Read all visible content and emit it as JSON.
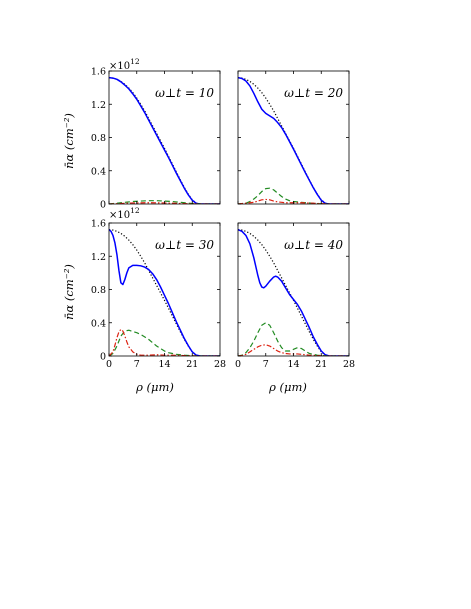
{
  "figure": {
    "y_axis_label": "n̄α (cm⁻²)",
    "x_axis_label": "ρ (μm)",
    "multiplier_label": "×10",
    "multiplier_exponent": "12"
  },
  "chart_data": [
    {
      "type": "line",
      "annotation": "ω⊥t = 10",
      "xlim": [
        0,
        28
      ],
      "ylim": [
        0,
        1.6
      ],
      "xticks": [
        0,
        7,
        14,
        21,
        28
      ],
      "yticks": [
        0,
        0.4,
        0.8,
        1.2,
        1.6
      ],
      "ytick_labels": [
        "0",
        "0.4",
        "0.8",
        "1.2",
        "1.6"
      ],
      "series": [
        {
          "color": "#000000",
          "dash": "1.2 2",
          "x": [
            0,
            1,
            2,
            3,
            4,
            5,
            6,
            7,
            8,
            9,
            10,
            11,
            12,
            13,
            14,
            15,
            16,
            17,
            18,
            19,
            20,
            21,
            22,
            23,
            24,
            25,
            26,
            27,
            28
          ],
          "y": [
            1.52,
            1.515,
            1.5,
            1.475,
            1.44,
            1.395,
            1.34,
            1.275,
            1.2,
            1.12,
            1.03,
            0.94,
            0.85,
            0.76,
            0.67,
            0.575,
            0.48,
            0.385,
            0.29,
            0.2,
            0.12,
            0.05,
            0.01,
            0,
            0,
            0,
            0,
            0,
            0
          ]
        },
        {
          "color": "#0000ff",
          "dash": "",
          "x": [
            0,
            1,
            2,
            3,
            4,
            5,
            6,
            7,
            8,
            9,
            10,
            11,
            12,
            13,
            14,
            15,
            16,
            17,
            18,
            19,
            20,
            21,
            22,
            23,
            24,
            25,
            26,
            27,
            28
          ],
          "y": [
            1.52,
            1.515,
            1.5,
            1.47,
            1.43,
            1.385,
            1.325,
            1.26,
            1.18,
            1.1,
            1.01,
            0.92,
            0.83,
            0.74,
            0.65,
            0.56,
            0.465,
            0.37,
            0.28,
            0.19,
            0.11,
            0.045,
            0.008,
            0,
            0,
            0,
            0,
            0,
            0
          ]
        },
        {
          "color": "#228b22",
          "dash": "5 3",
          "x": [
            0,
            2,
            4,
            6,
            8,
            10,
            12,
            14,
            16,
            18,
            20,
            22,
            24,
            28
          ],
          "y": [
            0,
            0.01,
            0.02,
            0.03,
            0.035,
            0.04,
            0.04,
            0.035,
            0.03,
            0.02,
            0.01,
            0.003,
            0,
            0
          ]
        },
        {
          "color": "#dd2211",
          "dash": "5 2 1.5 2",
          "x": [
            0,
            2,
            4,
            6,
            8,
            10,
            12,
            14,
            16,
            18,
            20,
            22,
            24,
            28
          ],
          "y": [
            0,
            0.004,
            0.008,
            0.012,
            0.014,
            0.015,
            0.014,
            0.012,
            0.009,
            0.006,
            0.003,
            0.001,
            0,
            0
          ]
        }
      ]
    },
    {
      "type": "line",
      "annotation": "ω⊥t = 20",
      "xlim": [
        0,
        28
      ],
      "ylim": [
        0,
        1.6
      ],
      "xticks": [
        0,
        7,
        14,
        21,
        28
      ],
      "yticks": [
        0,
        0.4,
        0.8,
        1.2,
        1.6
      ],
      "ytick_labels": [
        "",
        "",
        "",
        "",
        ""
      ],
      "series": [
        {
          "color": "#000000",
          "dash": "1.2 2",
          "x": [
            0,
            1,
            2,
            3,
            4,
            5,
            6,
            7,
            8,
            9,
            10,
            11,
            12,
            13,
            14,
            15,
            16,
            17,
            18,
            19,
            20,
            21,
            22,
            23,
            24,
            25,
            26,
            27,
            28
          ],
          "y": [
            1.52,
            1.515,
            1.5,
            1.475,
            1.44,
            1.395,
            1.34,
            1.275,
            1.2,
            1.12,
            1.03,
            0.94,
            0.85,
            0.76,
            0.67,
            0.575,
            0.48,
            0.385,
            0.29,
            0.2,
            0.12,
            0.05,
            0.01,
            0,
            0,
            0,
            0,
            0,
            0
          ]
        },
        {
          "color": "#0000ff",
          "dash": "",
          "x": [
            0,
            1,
            2,
            3,
            4,
            5,
            6,
            7,
            8,
            9,
            10,
            11,
            12,
            13,
            14,
            15,
            16,
            17,
            18,
            19,
            20,
            21,
            22,
            23,
            24,
            25,
            26,
            27,
            28
          ],
          "y": [
            1.52,
            1.51,
            1.48,
            1.42,
            1.33,
            1.23,
            1.14,
            1.09,
            1.06,
            1.03,
            0.98,
            0.92,
            0.84,
            0.75,
            0.66,
            0.565,
            0.47,
            0.375,
            0.285,
            0.195,
            0.115,
            0.045,
            0.008,
            0,
            0,
            0,
            0,
            0,
            0
          ]
        },
        {
          "color": "#228b22",
          "dash": "5 3",
          "x": [
            0,
            2,
            3,
            4,
            5,
            6,
            7,
            8,
            9,
            10,
            11,
            12,
            13,
            14,
            16,
            18,
            20,
            22,
            24,
            28
          ],
          "y": [
            0,
            0.01,
            0.03,
            0.06,
            0.1,
            0.15,
            0.185,
            0.19,
            0.17,
            0.13,
            0.09,
            0.06,
            0.04,
            0.03,
            0.02,
            0.012,
            0.005,
            0.001,
            0,
            0
          ]
        },
        {
          "color": "#dd2211",
          "dash": "5 2 1.5 2",
          "x": [
            0,
            2,
            4,
            5,
            6,
            7,
            8,
            9,
            10,
            11,
            12,
            14,
            16,
            18,
            20,
            22,
            24,
            28
          ],
          "y": [
            0,
            0.01,
            0.02,
            0.035,
            0.05,
            0.055,
            0.05,
            0.035,
            0.025,
            0.02,
            0.015,
            0.015,
            0.015,
            0.012,
            0.006,
            0.002,
            0,
            0
          ]
        }
      ]
    },
    {
      "type": "line",
      "annotation": "ω⊥t = 30",
      "xlim": [
        0,
        28
      ],
      "ylim": [
        0,
        1.6
      ],
      "xticks": [
        0,
        7,
        14,
        21,
        28
      ],
      "yticks": [
        0,
        0.4,
        0.8,
        1.2,
        1.6
      ],
      "ytick_labels": [
        "0",
        "0.4",
        "0.8",
        "1.2",
        "1.6"
      ],
      "series": [
        {
          "color": "#000000",
          "dash": "1.2 2",
          "x": [
            0,
            1,
            2,
            3,
            4,
            5,
            6,
            7,
            8,
            9,
            10,
            11,
            12,
            13,
            14,
            15,
            16,
            17,
            18,
            19,
            20,
            21,
            22,
            23,
            24,
            25,
            26,
            27,
            28
          ],
          "y": [
            1.52,
            1.515,
            1.5,
            1.475,
            1.44,
            1.395,
            1.34,
            1.275,
            1.2,
            1.12,
            1.03,
            0.94,
            0.85,
            0.76,
            0.67,
            0.575,
            0.48,
            0.385,
            0.29,
            0.2,
            0.12,
            0.05,
            0.01,
            0,
            0,
            0,
            0,
            0,
            0
          ]
        },
        {
          "color": "#0000ff",
          "dash": "",
          "x": [
            0,
            0.5,
            1,
            1.5,
            2,
            2.5,
            3,
            3.5,
            4,
            4.5,
            5,
            6,
            7,
            8,
            9,
            10,
            11,
            12,
            13,
            14,
            15,
            16,
            17,
            18,
            19,
            20,
            21,
            22,
            23,
            24,
            28
          ],
          "y": [
            1.52,
            1.5,
            1.45,
            1.36,
            1.22,
            1.03,
            0.88,
            0.86,
            0.92,
            1.0,
            1.06,
            1.09,
            1.09,
            1.085,
            1.07,
            1.04,
            0.99,
            0.92,
            0.83,
            0.73,
            0.63,
            0.52,
            0.41,
            0.31,
            0.21,
            0.125,
            0.05,
            0.01,
            0,
            0,
            0
          ]
        },
        {
          "color": "#228b22",
          "dash": "5 3",
          "x": [
            0,
            1,
            2,
            3,
            4,
            5,
            6,
            7,
            8,
            9,
            10,
            11,
            12,
            13,
            14,
            15,
            16,
            17,
            18,
            19,
            20,
            21,
            22,
            23,
            24,
            28
          ],
          "y": [
            0,
            0.03,
            0.12,
            0.24,
            0.3,
            0.31,
            0.295,
            0.28,
            0.26,
            0.23,
            0.2,
            0.16,
            0.12,
            0.09,
            0.06,
            0.04,
            0.03,
            0.02,
            0.015,
            0.01,
            0.007,
            0.004,
            0.002,
            0,
            0,
            0
          ]
        },
        {
          "color": "#dd2211",
          "dash": "5 2 1.5 2",
          "x": [
            0,
            1,
            1.5,
            2,
            2.5,
            3,
            3.5,
            4,
            4.5,
            5,
            6,
            7,
            8,
            9,
            10,
            12,
            14,
            16,
            18,
            20,
            22,
            24,
            28
          ],
          "y": [
            0,
            0.05,
            0.13,
            0.22,
            0.29,
            0.32,
            0.3,
            0.24,
            0.17,
            0.11,
            0.05,
            0.02,
            0.01,
            0.01,
            0.01,
            0.015,
            0.01,
            0.01,
            0.006,
            0.003,
            0.001,
            0,
            0
          ]
        }
      ]
    },
    {
      "type": "line",
      "annotation": "ω⊥t = 40",
      "xlim": [
        0,
        28
      ],
      "ylim": [
        0,
        1.6
      ],
      "xticks": [
        0,
        7,
        14,
        21,
        28
      ],
      "yticks": [
        0,
        0.4,
        0.8,
        1.2,
        1.6
      ],
      "ytick_labels": [
        "",
        "",
        "",
        "",
        ""
      ],
      "series": [
        {
          "color": "#000000",
          "dash": "1.2 2",
          "x": [
            0,
            1,
            2,
            3,
            4,
            5,
            6,
            7,
            8,
            9,
            10,
            11,
            12,
            13,
            14,
            15,
            16,
            17,
            18,
            19,
            20,
            21,
            22,
            23,
            24,
            25,
            26,
            27,
            28
          ],
          "y": [
            1.52,
            1.515,
            1.5,
            1.475,
            1.44,
            1.395,
            1.34,
            1.275,
            1.2,
            1.12,
            1.03,
            0.94,
            0.85,
            0.76,
            0.67,
            0.575,
            0.48,
            0.385,
            0.29,
            0.2,
            0.12,
            0.05,
            0.01,
            0,
            0,
            0,
            0,
            0,
            0
          ]
        },
        {
          "color": "#0000ff",
          "dash": "",
          "x": [
            0,
            1,
            2,
            3,
            4,
            5,
            5.5,
            6,
            6.5,
            7,
            8,
            9,
            9.5,
            10,
            11,
            12,
            13,
            14,
            15,
            16,
            17,
            18,
            19,
            20,
            21,
            22,
            23,
            24,
            28
          ],
          "y": [
            1.52,
            1.5,
            1.45,
            1.35,
            1.18,
            0.97,
            0.88,
            0.83,
            0.82,
            0.84,
            0.9,
            0.95,
            0.96,
            0.95,
            0.9,
            0.82,
            0.74,
            0.68,
            0.62,
            0.54,
            0.44,
            0.34,
            0.23,
            0.14,
            0.06,
            0.015,
            0,
            0,
            0
          ]
        },
        {
          "color": "#228b22",
          "dash": "5 3",
          "x": [
            0,
            1,
            2,
            3,
            4,
            5,
            6,
            7,
            8,
            9,
            10,
            11,
            12,
            13,
            14,
            15,
            16,
            17,
            18,
            20,
            22,
            24,
            28
          ],
          "y": [
            0,
            0.01,
            0.04,
            0.1,
            0.18,
            0.28,
            0.37,
            0.4,
            0.37,
            0.28,
            0.18,
            0.1,
            0.06,
            0.06,
            0.08,
            0.1,
            0.09,
            0.06,
            0.03,
            0.01,
            0.003,
            0,
            0
          ]
        },
        {
          "color": "#dd2211",
          "dash": "5 2 1.5 2",
          "x": [
            0,
            1,
            2,
            3,
            4,
            5,
            6,
            7,
            8,
            9,
            10,
            11,
            12,
            13,
            14,
            15,
            16,
            18,
            20,
            22,
            24,
            28
          ],
          "y": [
            0,
            0.005,
            0.02,
            0.05,
            0.08,
            0.11,
            0.13,
            0.135,
            0.12,
            0.09,
            0.06,
            0.04,
            0.03,
            0.025,
            0.025,
            0.025,
            0.02,
            0.01,
            0.005,
            0.001,
            0,
            0
          ]
        }
      ]
    }
  ]
}
